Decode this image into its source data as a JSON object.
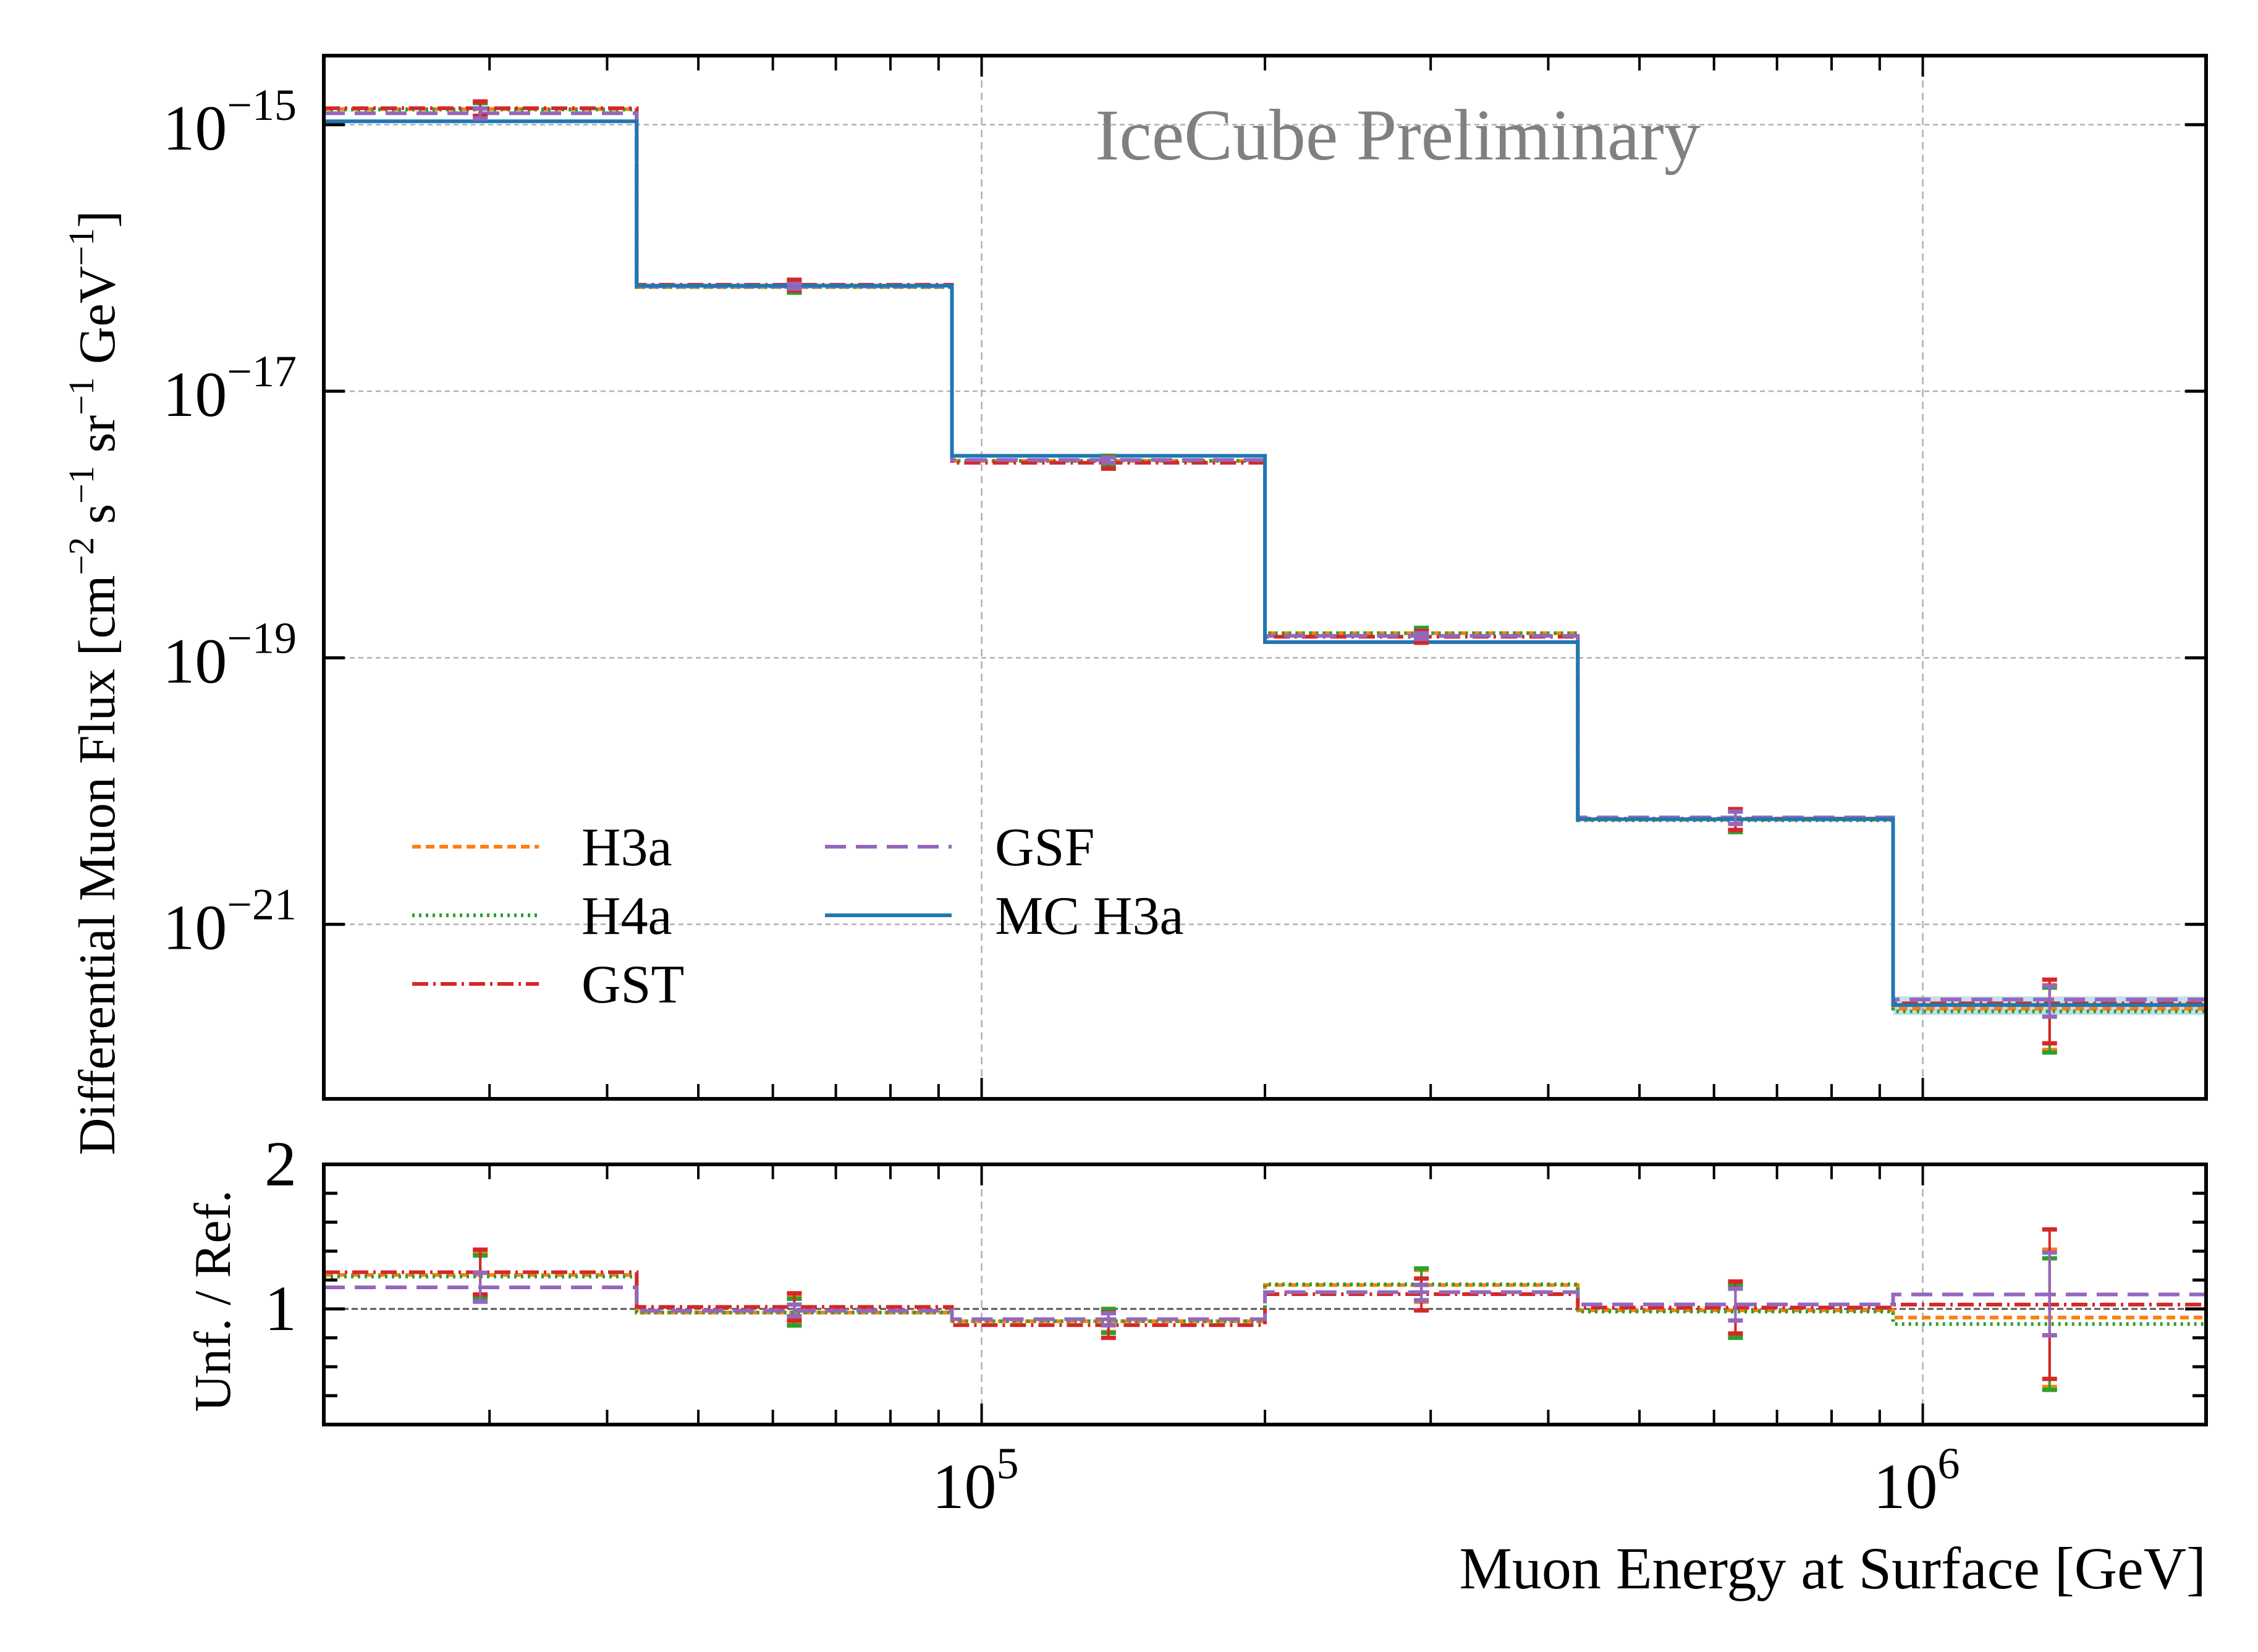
{
  "chart_data": [
    {
      "panel": "flux",
      "type": "line",
      "step": true,
      "title": "",
      "annotation": "IceCube Preliminary",
      "xlabel": "Muon Energy at Surface [GeV]",
      "ylabel": "Differential Muon Flux [cm^-2 s^-1 sr^-1 GeV^-1]",
      "ylabel_parts": {
        "prefix": "Differential Muon Flux [cm",
        "cm_exp": "−2",
        "s": " s",
        "s_exp": "−1",
        "sr": " sr",
        "sr_exp": "−1",
        "gev": " GeV",
        "gev_exp": "−1",
        "suffix": "]"
      },
      "xscale": "log",
      "yscale": "log",
      "xlim": [
        20000,
        2000000
      ],
      "ylim": [
        4.9e-23,
        3.3e-15
      ],
      "grid": true,
      "legend_position": "lower-left",
      "legend_columns": 2,
      "x_ticks": [
        {
          "value": 100000,
          "base": "10",
          "exp": "5"
        },
        {
          "value": 1000000,
          "base": "10",
          "exp": "6"
        }
      ],
      "y_ticks": [
        {
          "value": 1e-15,
          "base": "10",
          "exp": "−15"
        },
        {
          "value": 1e-17,
          "base": "10",
          "exp": "−17"
        },
        {
          "value": 1e-19,
          "base": "10",
          "exp": "−19"
        },
        {
          "value": 1e-21,
          "base": "10",
          "exp": "−21"
        }
      ],
      "bin_edges": [
        20000,
        43000,
        93000,
        200000,
        430000,
        930000,
        2000000
      ],
      "series": [
        {
          "name": "H3a",
          "color": "#ff7f0e",
          "style": "dashed",
          "values": [
            1.31e-15,
            6.05e-17,
            3e-18,
            1.53e-19,
            6.09e-21,
            2.33e-22
          ]
        },
        {
          "name": "H4a",
          "color": "#2ca02c",
          "style": "dotted",
          "values": [
            1.3e-15,
            6.05e-17,
            3e-18,
            1.53e-19,
            6.04e-21,
            2.22e-22
          ]
        },
        {
          "name": "GST",
          "color": "#d62728",
          "style": "dashdot",
          "values": [
            1.33e-15,
            6.29e-17,
            2.91e-18,
            1.44e-19,
            6.21e-21,
            2.55e-22
          ]
        },
        {
          "name": "GSF",
          "color": "#9467bd",
          "style": "longdash",
          "values": [
            1.22e-15,
            6.12e-17,
            3.05e-18,
            1.46e-19,
            6.34e-21,
            2.73e-22
          ]
        },
        {
          "name": "MC H3a",
          "color": "#1f77b4",
          "style": "solid",
          "values": [
            1.06e-15,
            6.2e-17,
            3.28e-18,
            1.31e-19,
            6.15e-21,
            2.48e-22
          ],
          "band_rel": [
            0.0,
            0.0,
            0.0,
            0.0,
            0.03,
            0.16
          ]
        }
      ]
    },
    {
      "panel": "ratio",
      "type": "line",
      "step": true,
      "xlabel": "Muon Energy at Surface [GeV]",
      "ylabel": "Unf. / Ref.",
      "xscale": "log",
      "yscale": "linear",
      "xlim": [
        20000,
        2000000
      ],
      "ylim": [
        0.2,
        2.0
      ],
      "grid": true,
      "reference_line": 1.0,
      "y_ticks": [
        {
          "value": 1,
          "label": "1"
        },
        {
          "value": 2,
          "label": "2"
        }
      ],
      "bin_edges": [
        20000,
        43000,
        93000,
        200000,
        430000,
        930000,
        2000000
      ],
      "series": [
        {
          "name": "H3a",
          "color": "#ff7f0e",
          "style": "dashed",
          "values": [
            1.235,
            0.975,
            0.915,
            1.165,
            0.99,
            0.94
          ],
          "err_low": [
            1.09,
            0.9,
            0.84,
            1.05,
            0.82,
            0.46
          ],
          "err_high": [
            1.39,
            1.08,
            0.99,
            1.27,
            1.17,
            1.41
          ]
        },
        {
          "name": "H4a",
          "color": "#2ca02c",
          "style": "dotted",
          "values": [
            1.224,
            0.975,
            0.915,
            1.17,
            0.982,
            0.895
          ],
          "err_low": [
            1.077,
            0.885,
            0.835,
            1.06,
            0.8,
            0.44
          ],
          "err_high": [
            1.37,
            1.07,
            1.0,
            1.28,
            1.16,
            1.35
          ]
        },
        {
          "name": "GST",
          "color": "#d62728",
          "style": "dashdot",
          "values": [
            1.254,
            1.014,
            0.888,
            1.102,
            1.01,
            1.03
          ],
          "err_low": [
            1.1,
            0.92,
            0.8,
            0.99,
            0.83,
            0.516
          ],
          "err_high": [
            1.41,
            1.108,
            0.975,
            1.21,
            1.19,
            1.55
          ]
        },
        {
          "name": "GSF",
          "color": "#9467bd",
          "style": "longdash",
          "values": [
            1.149,
            0.987,
            0.929,
            1.116,
            1.031,
            1.1
          ],
          "err_low": [
            1.05,
            0.95,
            0.887,
            1.058,
            0.92,
            0.818
          ],
          "err_high": [
            1.25,
            1.03,
            0.97,
            1.166,
            1.14,
            1.39
          ]
        }
      ]
    }
  ]
}
